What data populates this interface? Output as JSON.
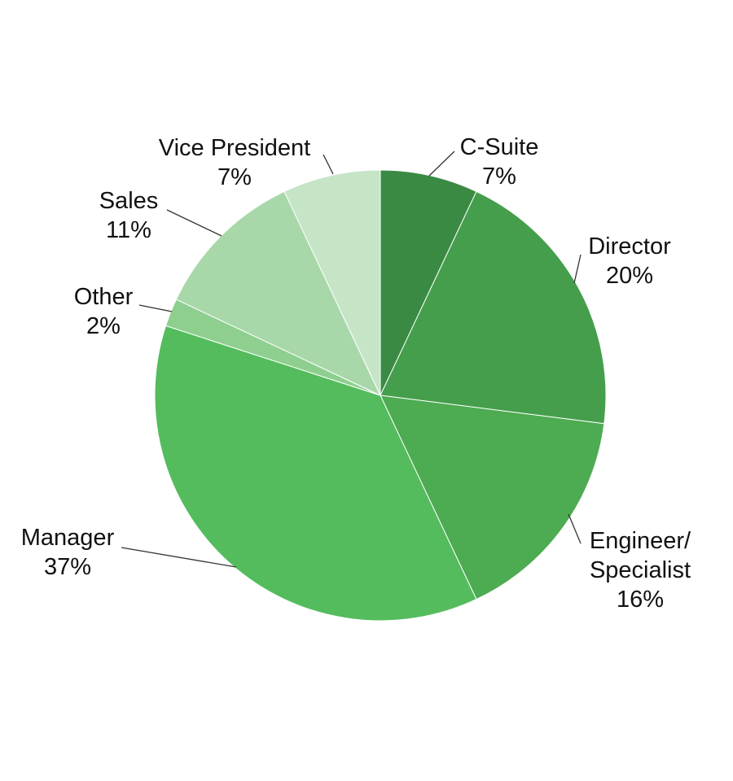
{
  "chart_data": {
    "type": "pie",
    "start_angle_deg": 0,
    "direction": "clockwise",
    "slices": [
      {
        "label_lines": [
          "C-Suite"
        ],
        "value_label": "7%",
        "value": 7,
        "color": "#3a8a44"
      },
      {
        "label_lines": [
          "Director"
        ],
        "value_label": "20%",
        "value": 20,
        "color": "#459e4b"
      },
      {
        "label_lines": [
          "Engineer/",
          "Specialist"
        ],
        "value_label": "16%",
        "value": 16,
        "color": "#4dab52"
      },
      {
        "label_lines": [
          "Manager"
        ],
        "value_label": "37%",
        "value": 37,
        "color": "#54bc5d"
      },
      {
        "label_lines": [
          "Other"
        ],
        "value_label": "2%",
        "value": 2,
        "color": "#8ecf8f"
      },
      {
        "label_lines": [
          "Sales"
        ],
        "value_label": "11%",
        "value": 11,
        "color": "#a8d8aa"
      },
      {
        "label_lines": [
          "Vice President"
        ],
        "value_label": "7%",
        "value": 7,
        "color": "#c5e5c6"
      }
    ]
  }
}
